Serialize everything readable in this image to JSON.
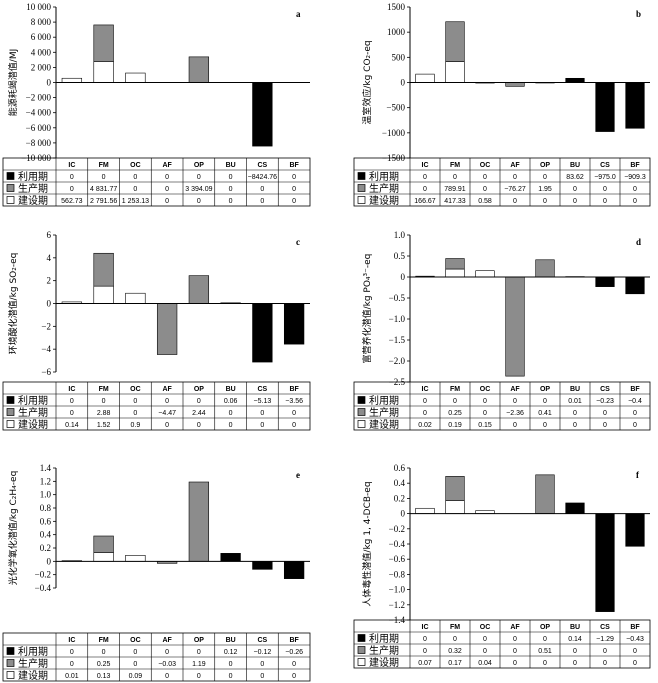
{
  "series_meta": [
    {
      "key": "use",
      "name": "利用期",
      "color": "#000000"
    },
    {
      "key": "prod",
      "name": "生产期",
      "color": "#8c8c8c"
    },
    {
      "key": "build",
      "name": "建设期",
      "color": "#ffffff"
    }
  ],
  "chart_data": [
    {
      "label": "a",
      "type": "bar",
      "stacked": true,
      "ylabel": "能源耗竭潜值/MJ",
      "categories": [
        "IC",
        "FM",
        "OC",
        "AF",
        "OP",
        "BU",
        "CS",
        "BF"
      ],
      "ylim": [
        -10000,
        10000
      ],
      "yticks": [
        "10 000",
        "8 000",
        "6 000",
        "4 000",
        "2 000",
        "0",
        "−2 000",
        "−4 000",
        "−6 000",
        "−8 000",
        "−10 000"
      ],
      "series": [
        {
          "name": "利用期",
          "values": [
            0,
            0,
            0,
            0,
            0,
            0,
            -8424.76,
            0
          ],
          "labels": [
            "0",
            "0",
            "0",
            "0",
            "0",
            "0",
            "−8424.76",
            "0"
          ]
        },
        {
          "name": "生产期",
          "values": [
            0,
            4831.77,
            0,
            0,
            3394.09,
            0,
            0,
            0
          ],
          "labels": [
            "0",
            "4 831.77",
            "0",
            "0",
            "3 394.09",
            "0",
            "0",
            "0"
          ]
        },
        {
          "name": "建设期",
          "values": [
            562.73,
            2791.56,
            1253.13,
            0,
            0,
            0,
            0,
            0
          ],
          "labels": [
            "562.73",
            "2 791.56",
            "1 253.13",
            "0",
            "0",
            "0",
            "0",
            "0"
          ]
        }
      ]
    },
    {
      "label": "b",
      "type": "bar",
      "stacked": true,
      "ylabel": "温室效应/kg CO₂-eq",
      "categories": [
        "IC",
        "FM",
        "OC",
        "AF",
        "OP",
        "BU",
        "CS",
        "BF"
      ],
      "ylim": [
        -1500,
        1500
      ],
      "yticks": [
        "1500",
        "1000",
        "500",
        "0",
        "−500",
        "−1000",
        "−1500"
      ],
      "series": [
        {
          "name": "利用期",
          "values": [
            0,
            0,
            0,
            0,
            0,
            83.62,
            -975.0,
            -909.3
          ],
          "labels": [
            "0",
            "0",
            "0",
            "0",
            "0",
            "83.62",
            "−975.0",
            "−909.3"
          ]
        },
        {
          "name": "生产期",
          "values": [
            0,
            789.91,
            0,
            -76.27,
            1.95,
            0,
            0,
            0
          ],
          "labels": [
            "0",
            "789.91",
            "0",
            "−76.27",
            "1.95",
            "0",
            "0",
            "0"
          ]
        },
        {
          "name": "建设期",
          "values": [
            166.67,
            417.33,
            0.58,
            0,
            0,
            0,
            0,
            0
          ],
          "labels": [
            "166.67",
            "417.33",
            "0.58",
            "0",
            "0",
            "0",
            "0",
            "0"
          ]
        }
      ]
    },
    {
      "label": "c",
      "type": "bar",
      "stacked": true,
      "ylabel": "环境酸化潜值/kg SO₂-eq",
      "categories": [
        "IC",
        "FM",
        "OC",
        "AF",
        "OP",
        "BU",
        "CS",
        "BF"
      ],
      "ylim": [
        -6,
        6
      ],
      "yticks": [
        "6",
        "4",
        "2",
        "0",
        "−2",
        "−4",
        "−6"
      ],
      "series": [
        {
          "name": "利用期",
          "values": [
            0,
            0,
            0,
            0,
            0,
            0.06,
            -5.13,
            -3.56
          ],
          "labels": [
            "0",
            "0",
            "0",
            "0",
            "0",
            "0.06",
            "−5.13",
            "−3.56"
          ]
        },
        {
          "name": "生产期",
          "values": [
            0,
            2.88,
            0,
            -4.47,
            2.44,
            0,
            0,
            0
          ],
          "labels": [
            "0",
            "2.88",
            "0",
            "−4.47",
            "2.44",
            "0",
            "0",
            "0"
          ]
        },
        {
          "name": "建设期",
          "values": [
            0.14,
            1.52,
            0.9,
            0,
            0,
            0,
            0,
            0
          ],
          "labels": [
            "0.14",
            "1.52",
            "0.9",
            "0",
            "0",
            "0",
            "0",
            "0"
          ]
        }
      ]
    },
    {
      "label": "d",
      "type": "bar",
      "stacked": true,
      "ylabel": "富营养化潜值/kg PO₄³⁻-eq",
      "categories": [
        "IC",
        "FM",
        "OC",
        "AF",
        "OP",
        "BU",
        "CS",
        "BF"
      ],
      "ylim": [
        -2.5,
        1.0
      ],
      "yticks": [
        "1.0",
        "0.5",
        "0",
        "−0.5",
        "−1.0",
        "−1.5",
        "−2.0",
        "−2.5"
      ],
      "series": [
        {
          "name": "利用期",
          "values": [
            0,
            0,
            0,
            0,
            0,
            0.01,
            -0.23,
            -0.4
          ],
          "labels": [
            "0",
            "0",
            "0",
            "0",
            "0",
            "0.01",
            "−0.23",
            "−0.4"
          ]
        },
        {
          "name": "生产期",
          "values": [
            0,
            0.25,
            0,
            -2.36,
            0.41,
            0,
            0,
            0
          ],
          "labels": [
            "0",
            "0.25",
            "0",
            "−2.36",
            "0.41",
            "0",
            "0",
            "0"
          ]
        },
        {
          "name": "建设期",
          "values": [
            0.02,
            0.19,
            0.15,
            0,
            0,
            0,
            0,
            0
          ],
          "labels": [
            "0.02",
            "0.19",
            "0.15",
            "0",
            "0",
            "0",
            "0",
            "0"
          ]
        }
      ]
    },
    {
      "label": "e",
      "type": "bar",
      "stacked": true,
      "ylabel": "光化学氧化潜值/kg C₂H₄-eq",
      "categories": [
        "IC",
        "FM",
        "OC",
        "AF",
        "OP",
        "BU",
        "CS",
        "BF"
      ],
      "ylim": [
        -0.4,
        1.4
      ],
      "yticks": [
        "1.4",
        "1.2",
        "1.0",
        "0.8",
        "0.6",
        "0.4",
        "0.2",
        "0",
        "−0.2",
        "−0.4"
      ],
      "series": [
        {
          "name": "利用期",
          "values": [
            0,
            0,
            0,
            0,
            0,
            0.12,
            -0.12,
            -0.26
          ],
          "labels": [
            "0",
            "0",
            "0",
            "0",
            "0",
            "0.12",
            "−0.12",
            "−0.26"
          ]
        },
        {
          "name": "生产期",
          "values": [
            0,
            0.25,
            0,
            -0.03,
            1.19,
            0,
            0,
            0
          ],
          "labels": [
            "0",
            "0.25",
            "0",
            "−0.03",
            "1.19",
            "0",
            "0",
            "0"
          ]
        },
        {
          "name": "建设期",
          "values": [
            0.01,
            0.13,
            0.09,
            0,
            0,
            0,
            0,
            0
          ],
          "labels": [
            "0.01",
            "0.13",
            "0.09",
            "0",
            "0",
            "0",
            "0",
            "0"
          ]
        }
      ]
    },
    {
      "label": "f",
      "type": "bar",
      "stacked": true,
      "ylabel": "人体毒性潜值/kg 1, 4-DCB-eq",
      "categories": [
        "IC",
        "FM",
        "OC",
        "AF",
        "OP",
        "BU",
        "CS",
        "BF"
      ],
      "ylim": [
        -1.4,
        0.6
      ],
      "yticks": [
        "0.6",
        "0.4",
        "0.2",
        "0",
        "−0.2",
        "−0.4",
        "−0.6",
        "−0.8",
        "−1.0",
        "−1.2",
        "−1.4"
      ],
      "series": [
        {
          "name": "利用期",
          "values": [
            0,
            0,
            0,
            0,
            0,
            0.14,
            -1.29,
            -0.43
          ],
          "labels": [
            "0",
            "0",
            "0",
            "0",
            "0",
            "0.14",
            "−1.29",
            "−0.43"
          ]
        },
        {
          "name": "生产期",
          "values": [
            0,
            0.32,
            0,
            0,
            0.51,
            0,
            0,
            0
          ],
          "labels": [
            "0",
            "0.32",
            "0",
            "0",
            "0.51",
            "0",
            "0",
            "0"
          ]
        },
        {
          "name": "建设期",
          "values": [
            0.07,
            0.17,
            0.04,
            0,
            0,
            0,
            0,
            0
          ],
          "labels": [
            "0.07",
            "0.17",
            "0.04",
            "0",
            "0",
            "0",
            "0",
            "0"
          ]
        }
      ]
    }
  ]
}
